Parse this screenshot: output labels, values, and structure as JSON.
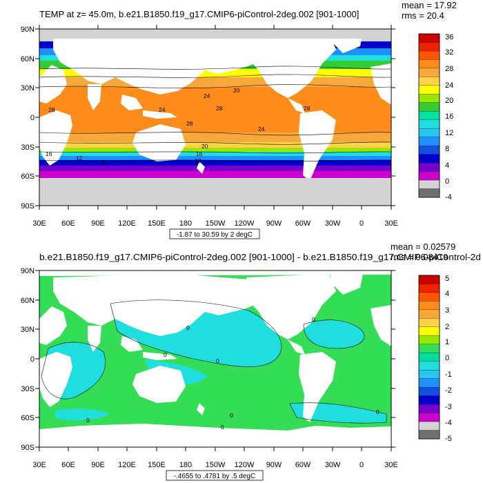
{
  "panels": [
    {
      "title": "TEMP at z=  45.0m, b.e21.B1850.f19_g17.CMIP6-piControl-2deg.002 [901-1000]",
      "mean_label": "mean = 17.92",
      "rms_label": "rms = 20.4",
      "range_label": "-1.87 to 30.59 by 2 degC",
      "y_ticks": [
        "90N",
        "60N",
        "30N",
        "0",
        "30S",
        "60S",
        "90S"
      ],
      "x_ticks": [
        "30E",
        "60E",
        "90E",
        "120E",
        "150E",
        "180",
        "150W",
        "120W",
        "90W",
        "60W",
        "30W",
        "0",
        "30E"
      ],
      "colorbar_labels": [
        "36",
        "32",
        "28",
        "24",
        "20",
        "16",
        "12",
        "8",
        "4",
        "0",
        "-4"
      ],
      "colorbar_colors": [
        "#cc0000",
        "#ee2200",
        "#ff5500",
        "#ff8c1a",
        "#f7a83a",
        "#ffd24a",
        "#ffff00",
        "#99e600",
        "#33cc33",
        "#00e0a0",
        "#20dede",
        "#28c6f0",
        "#1e90ff",
        "#1450e0",
        "#0000cc",
        "#7700cc",
        "#cc00cc",
        "#d3d3d3",
        "#707070"
      ],
      "contour_labels": [
        "28",
        "28",
        "24",
        "28",
        "20",
        "24",
        "28",
        "16",
        "12",
        "8",
        "20",
        "16",
        "12",
        "24"
      ]
    },
    {
      "title": "b.e21.B1850.f19_g17.CMIP6-piControl-2deg.002 [901-1000] - b.e21.B1850.f19_g17.CMIP6-piControl-2d",
      "mean_label": "mean = 0.02579",
      "rms_label": "rms = 0.08419",
      "range_label": "-.4655 to .4781 by .5 degC",
      "y_ticks": [
        "90N",
        "60N",
        "30N",
        "0",
        "30S",
        "60S",
        "90S"
      ],
      "x_ticks": [
        "30E",
        "60E",
        "90E",
        "120E",
        "150E",
        "180",
        "150W",
        "120W",
        "90W",
        "60W",
        "30W",
        "0",
        "30E"
      ],
      "colorbar_labels": [
        "5",
        "4",
        "3",
        "2",
        "1",
        "0",
        "-1",
        "-2",
        "-3",
        "-4",
        "-5"
      ],
      "colorbar_colors": [
        "#cc0000",
        "#ee2200",
        "#ff5500",
        "#ff8c1a",
        "#f7a83a",
        "#ffd24a",
        "#ffff00",
        "#99e600",
        "#33dd55",
        "#00e0a0",
        "#20dede",
        "#28c6f0",
        "#1e90ff",
        "#1450e0",
        "#0000cc",
        "#7700cc",
        "#cc00cc",
        "#d3d3d3",
        "#707070"
      ],
      "contour_labels": [
        "0",
        "0",
        "0",
        "0",
        "0",
        "0",
        "0",
        "0"
      ]
    }
  ]
}
